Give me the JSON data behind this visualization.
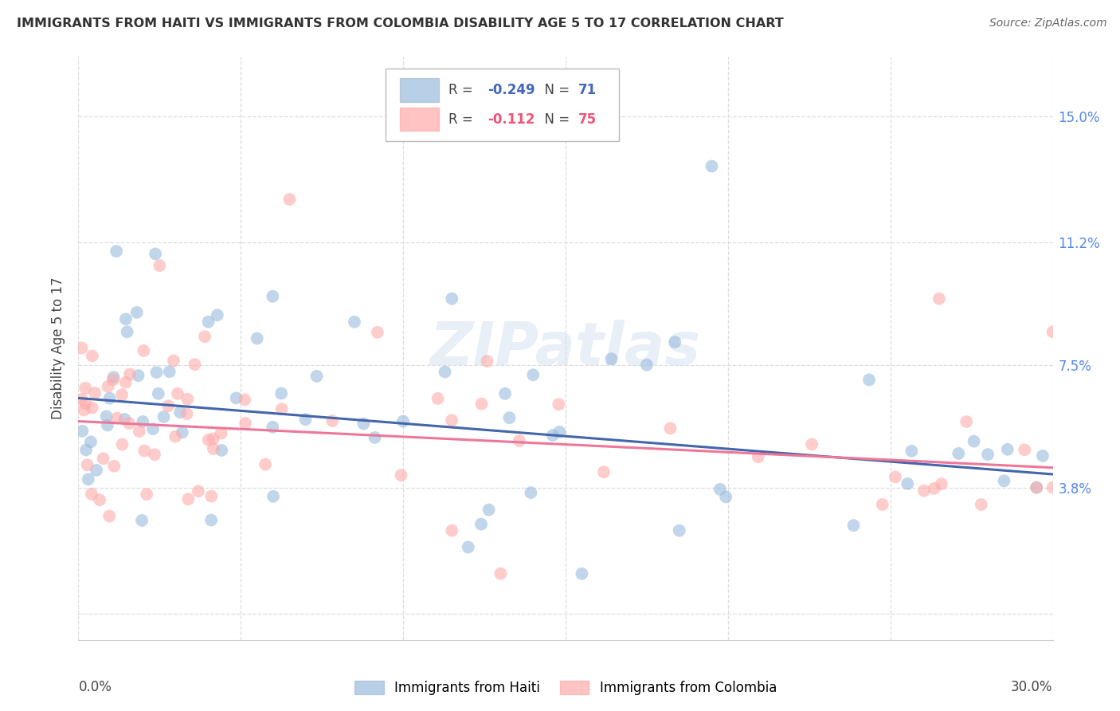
{
  "title": "IMMIGRANTS FROM HAITI VS IMMIGRANTS FROM COLOMBIA DISABILITY AGE 5 TO 17 CORRELATION CHART",
  "source": "Source: ZipAtlas.com",
  "ylabel": "Disability Age 5 to 17",
  "yticks": [
    0.0,
    0.038,
    0.075,
    0.112,
    0.15
  ],
  "ytick_labels": [
    "",
    "3.8%",
    "7.5%",
    "11.2%",
    "15.0%"
  ],
  "xlim": [
    0.0,
    0.3
  ],
  "ylim": [
    -0.008,
    0.168
  ],
  "haiti_color": "#99BBDD",
  "colombia_color": "#FFAAAA",
  "haiti_line_color": "#4466AA",
  "colombia_line_color": "#EE7799",
  "watermark": "ZIPatlas",
  "legend_haiti_color": "#99BBDD",
  "legend_colombia_color": "#FFAAAA",
  "haiti_x": [
    0.002,
    0.003,
    0.004,
    0.005,
    0.006,
    0.006,
    0.007,
    0.007,
    0.008,
    0.008,
    0.009,
    0.009,
    0.01,
    0.01,
    0.011,
    0.011,
    0.012,
    0.012,
    0.013,
    0.013,
    0.014,
    0.014,
    0.015,
    0.015,
    0.016,
    0.016,
    0.017,
    0.018,
    0.019,
    0.02,
    0.021,
    0.022,
    0.023,
    0.024,
    0.025,
    0.026,
    0.028,
    0.03,
    0.032,
    0.035,
    0.038,
    0.04,
    0.043,
    0.047,
    0.05,
    0.055,
    0.06,
    0.065,
    0.07,
    0.075,
    0.08,
    0.09,
    0.1,
    0.11,
    0.12,
    0.13,
    0.14,
    0.15,
    0.16,
    0.18,
    0.19,
    0.21,
    0.24,
    0.26,
    0.27,
    0.28,
    0.285,
    0.29,
    0.295,
    0.3,
    0.3
  ],
  "haiti_y": [
    0.065,
    0.07,
    0.06,
    0.075,
    0.065,
    0.07,
    0.06,
    0.08,
    0.065,
    0.07,
    0.065,
    0.07,
    0.055,
    0.065,
    0.07,
    0.06,
    0.055,
    0.075,
    0.065,
    0.06,
    0.065,
    0.075,
    0.06,
    0.065,
    0.055,
    0.06,
    0.065,
    0.06,
    0.055,
    0.065,
    0.055,
    0.06,
    0.065,
    0.06,
    0.065,
    0.055,
    0.065,
    0.06,
    0.065,
    0.055,
    0.06,
    0.065,
    0.085,
    0.075,
    0.065,
    0.06,
    0.065,
    0.075,
    0.065,
    0.06,
    0.07,
    0.065,
    0.065,
    0.055,
    0.09,
    0.065,
    0.06,
    0.055,
    0.05,
    0.065,
    0.07,
    0.075,
    0.135,
    0.055,
    0.06,
    0.065,
    0.055,
    0.04,
    0.05,
    0.045,
    0.04
  ],
  "colombia_x": [
    0.002,
    0.003,
    0.004,
    0.005,
    0.006,
    0.007,
    0.007,
    0.008,
    0.009,
    0.009,
    0.01,
    0.01,
    0.011,
    0.011,
    0.012,
    0.012,
    0.013,
    0.013,
    0.014,
    0.015,
    0.016,
    0.016,
    0.017,
    0.018,
    0.019,
    0.02,
    0.021,
    0.022,
    0.023,
    0.024,
    0.025,
    0.026,
    0.027,
    0.028,
    0.03,
    0.032,
    0.034,
    0.036,
    0.038,
    0.04,
    0.042,
    0.045,
    0.048,
    0.05,
    0.055,
    0.06,
    0.065,
    0.07,
    0.075,
    0.08,
    0.085,
    0.09,
    0.1,
    0.11,
    0.12,
    0.13,
    0.14,
    0.15,
    0.16,
    0.17,
    0.18,
    0.19,
    0.2,
    0.21,
    0.22,
    0.24,
    0.26,
    0.27,
    0.28,
    0.29,
    0.295,
    0.3,
    0.3,
    0.3,
    0.3
  ],
  "colombia_y": [
    0.065,
    0.055,
    0.06,
    0.06,
    0.065,
    0.055,
    0.075,
    0.065,
    0.06,
    0.065,
    0.055,
    0.065,
    0.06,
    0.055,
    0.065,
    0.06,
    0.055,
    0.075,
    0.06,
    0.065,
    0.055,
    0.065,
    0.07,
    0.055,
    0.06,
    0.065,
    0.055,
    0.065,
    0.06,
    0.055,
    0.065,
    0.06,
    0.055,
    0.07,
    0.065,
    0.06,
    0.055,
    0.065,
    0.06,
    0.055,
    0.065,
    0.06,
    0.055,
    0.05,
    0.055,
    0.06,
    0.05,
    0.055,
    0.05,
    0.045,
    0.055,
    0.05,
    0.045,
    0.04,
    0.055,
    0.05,
    0.045,
    0.04,
    0.045,
    0.04,
    0.035,
    0.04,
    0.04,
    0.055,
    0.045,
    0.04,
    0.055,
    0.035,
    0.04,
    0.045,
    0.04,
    0.038,
    0.038,
    0.038,
    0.09
  ]
}
